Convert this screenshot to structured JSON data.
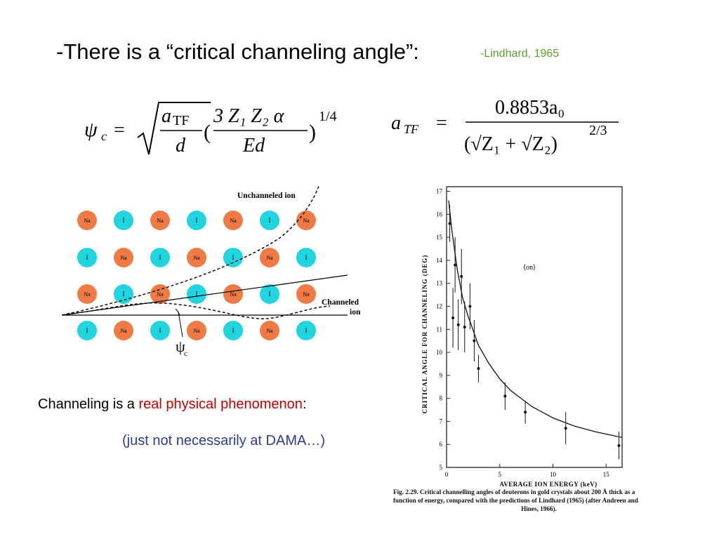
{
  "slide": {
    "title": "-There is a “critical channeling angle”:",
    "citation": "-Lindhard, 1965",
    "statement_pre": "Channeling is a ",
    "statement_highlight": "real physical phenomenon",
    "statement_post": ":",
    "aside": "(just not necessarily at DAMA…)"
  },
  "equation1": {
    "lhs": "ψ",
    "lhs_sub": "c",
    "equals": "=",
    "num1": "a",
    "num1_sub": "TF",
    "den1": "d",
    "num2": "3 Z₁ Z₂ α",
    "den2": "Ed",
    "power": "1/4"
  },
  "equation2": {
    "lhs": "a",
    "lhs_sub": "TF",
    "equals": "=",
    "numerator": "0.8853a₀",
    "denominator": "(√Z₁ + √Z₂)",
    "power": "2/3"
  },
  "lattice": {
    "na_label": "Na",
    "i_label": "I",
    "na_color": "#f07a45",
    "i_color": "#20d4e0",
    "unchanneled_label": "Unchanneled ion",
    "channeled_label1": "Channeled",
    "channeled_label2": "ion",
    "angle_label": "ψ",
    "angle_sub": "c",
    "rows": [
      [
        "Na",
        "I",
        "Na",
        "I",
        "Na",
        "I",
        "Na"
      ],
      [
        "I",
        "Na",
        "I",
        "Na",
        "I",
        "Na",
        "I"
      ],
      [
        "Na",
        "I",
        "Na",
        "I",
        "Na",
        "I",
        "Na"
      ],
      [
        "I",
        "Na",
        "I",
        "Na",
        "I",
        "Na",
        "I"
      ]
    ]
  },
  "chart_data": {
    "type": "scatter",
    "title": "",
    "annotation": "⟨on⟩",
    "xlabel": "AVERAGE ION ENERGY (keV)",
    "ylabel": "CRITICAL ANGLE FOR CHANNELING (DEG)",
    "xlim": [
      0,
      16.5
    ],
    "ylim": [
      5,
      17.2
    ],
    "x_ticks": [
      "0",
      "5",
      "10",
      "15"
    ],
    "y_ticks": [
      "5",
      "6",
      "7",
      "8",
      "9",
      "10",
      "11",
      "12",
      "13",
      "14",
      "15",
      "16",
      "17"
    ],
    "grid": false,
    "points": [
      {
        "x": 0.3,
        "y": 15.6,
        "err": 0.8
      },
      {
        "x": 0.6,
        "y": 11.5,
        "err": 1.3
      },
      {
        "x": 0.8,
        "y": 13.8,
        "err": 1.2
      },
      {
        "x": 1.1,
        "y": 11.2,
        "err": 1.1
      },
      {
        "x": 1.4,
        "y": 13.3,
        "err": 1.2
      },
      {
        "x": 1.7,
        "y": 11.1,
        "err": 1.1
      },
      {
        "x": 2.2,
        "y": 12.0,
        "err": 1.0
      },
      {
        "x": 2.6,
        "y": 10.5,
        "err": 0.9
      },
      {
        "x": 3.0,
        "y": 9.3,
        "err": 0.6
      },
      {
        "x": 5.5,
        "y": 8.1,
        "err": 0.6
      },
      {
        "x": 7.4,
        "y": 7.4,
        "err": 0.5
      },
      {
        "x": 11.2,
        "y": 6.7,
        "err": 0.7
      },
      {
        "x": 16.2,
        "y": 5.95,
        "err": 0.6
      }
    ],
    "fit_curve": {
      "x": [
        0.2,
        0.5,
        1.0,
        1.5,
        2.0,
        3.0,
        4.0,
        5.0,
        6.0,
        8.0,
        10.0,
        12.0,
        14.0,
        16.5
      ],
      "y": [
        16.6,
        15.3,
        13.6,
        12.4,
        11.6,
        10.3,
        9.5,
        8.85,
        8.35,
        7.65,
        7.15,
        6.8,
        6.55,
        6.3
      ]
    },
    "caption_line1": "Fig. 2.29. Critical channelling angles of deuterons in gold crystals about 200 Å thick as a",
    "caption_line2": "function of energy, compared with the predictions of Lindhard (1965) (after Andreen and",
    "caption_line3": "Hines, 1966)."
  }
}
